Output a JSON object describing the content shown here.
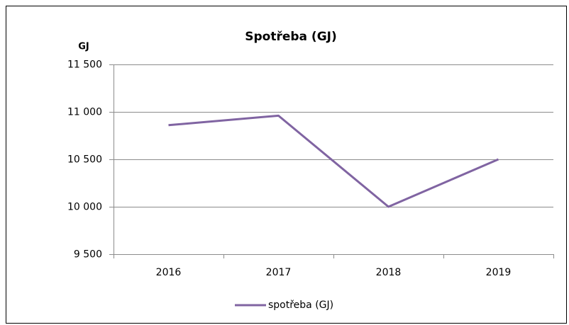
{
  "chart_data": {
    "type": "line",
    "title": "Spotřeba (GJ)",
    "y_label": "GJ",
    "categories": [
      "2016",
      "2017",
      "2018",
      "2019"
    ],
    "series": [
      {
        "name": "spotřeba (GJ)",
        "color": "#8064a2",
        "values": [
          10860,
          10960,
          10000,
          10500
        ]
      }
    ],
    "ylim": [
      9500,
      11500
    ],
    "yticks": [
      {
        "value": 9500,
        "label": "9 500"
      },
      {
        "value": 10000,
        "label": "10 000"
      },
      {
        "value": 10500,
        "label": "10 500"
      },
      {
        "value": 11000,
        "label": "11 000"
      },
      {
        "value": 11500,
        "label": "11 500"
      }
    ],
    "grid": true,
    "legend": "bottom"
  }
}
